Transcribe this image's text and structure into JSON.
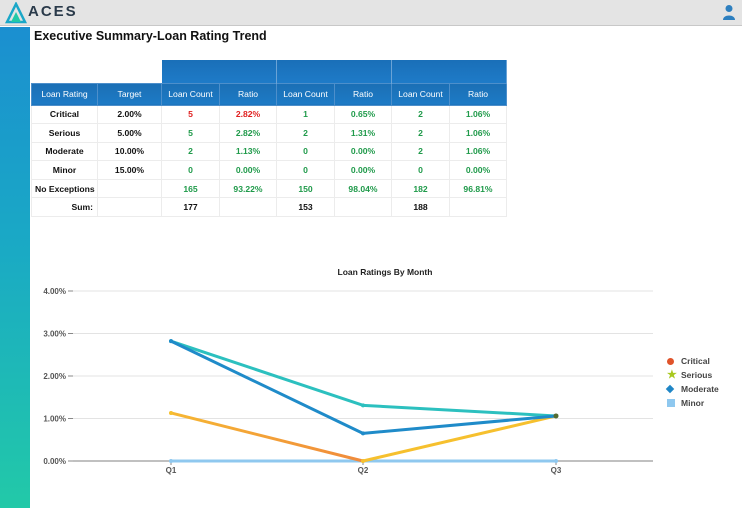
{
  "app": {
    "logo_text": "ACES",
    "user_icon": "user-icon"
  },
  "page": {
    "title": "Executive Summary-Loan Rating Trend"
  },
  "table": {
    "headers": [
      "Loan Rating",
      "Target",
      "Loan Count",
      "Ratio",
      "Loan Count",
      "Ratio",
      "Loan Count",
      "Ratio"
    ],
    "rows": [
      {
        "label": "Critical",
        "target": "2.00%",
        "q1_count": "5",
        "q1_ratio": "2.82%",
        "q2_count": "1",
        "q2_ratio": "0.65%",
        "q3_count": "2",
        "q3_ratio": "1.06%"
      },
      {
        "label": "Serious",
        "target": "5.00%",
        "q1_count": "5",
        "q1_ratio": "2.82%",
        "q2_count": "2",
        "q2_ratio": "1.31%",
        "q3_count": "2",
        "q3_ratio": "1.06%"
      },
      {
        "label": "Moderate",
        "target": "10.00%",
        "q1_count": "2",
        "q1_ratio": "1.13%",
        "q2_count": "0",
        "q2_ratio": "0.00%",
        "q3_count": "2",
        "q3_ratio": "1.06%"
      },
      {
        "label": "Minor",
        "target": "15.00%",
        "q1_count": "0",
        "q1_ratio": "0.00%",
        "q2_count": "0",
        "q2_ratio": "0.00%",
        "q3_count": "0",
        "q3_ratio": "0.00%"
      },
      {
        "label": "No Exceptions",
        "target": "",
        "q1_count": "165",
        "q1_ratio": "93.22%",
        "q2_count": "150",
        "q2_ratio": "98.04%",
        "q3_count": "182",
        "q3_ratio": "96.81%"
      }
    ],
    "sum": {
      "label": "Sum:",
      "q1": "177",
      "q2": "153",
      "q3": "188"
    },
    "colors": {
      "alert": "#e02020",
      "ok": "#1f9a4a",
      "header": "#1d77c2"
    }
  },
  "chart_data": {
    "type": "line",
    "title": "Loan Ratings By Month",
    "categories": [
      "Q1",
      "Q2",
      "Q3"
    ],
    "ylim": [
      0,
      4
    ],
    "yticks": [
      "0.00%",
      "1.00%",
      "2.00%",
      "3.00%",
      "4.00%"
    ],
    "grid": true,
    "legend_position": "right",
    "legend": [
      {
        "name": "Critical",
        "color": "#e0532a",
        "marker": "circle"
      },
      {
        "name": "Serious",
        "color": "#a8c81e",
        "marker": "star"
      },
      {
        "name": "Moderate",
        "color": "#1f86c6",
        "marker": "diamond"
      },
      {
        "name": "Minor",
        "color": "#8fc8ef",
        "marker": "square"
      }
    ],
    "series": [
      {
        "values": [
          0.0,
          0.0,
          0.0
        ],
        "color": "#8fc8ef"
      },
      {
        "values": [
          1.13,
          0.0,
          1.06
        ],
        "color": "#f6c02e"
      },
      {
        "values": [
          2.82,
          1.31,
          1.06
        ],
        "color": "#2cc0bf"
      },
      {
        "values": [
          2.82,
          0.65,
          1.06
        ],
        "color": "#1f8bc9"
      }
    ],
    "segment_overrides": [
      {
        "series": 1,
        "from": 0,
        "to": 1,
        "color": "#f6b733",
        "end_color": "#f08a3c"
      }
    ]
  }
}
